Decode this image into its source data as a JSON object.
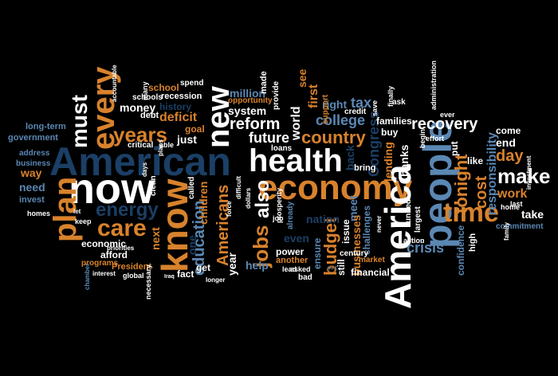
{
  "colors": {
    "white": "#ffffff",
    "orange": "#d8822c",
    "navy": "#1b3f66",
    "blue": "#5b87b3",
    "lightblue": "#9bbad8",
    "background": "#000000"
  },
  "words": {
    "american": "American",
    "now": "now",
    "health": "health",
    "economy": "economy",
    "people": "people",
    "america": "America",
    "know": "know",
    "new": "new",
    "every": "every",
    "plan": "plan",
    "time": "time",
    "make": "make",
    "care": "care",
    "must": "must",
    "years": "years",
    "energy": "energy",
    "jobs": "jobs",
    "also": "also",
    "reform": "reform",
    "future": "future",
    "country": "country",
    "recovery": "recovery",
    "tonight": "tonight",
    "cost": "cost",
    "crisis": "crisis",
    "budget": "budget",
    "americans": "Americans",
    "education": "education",
    "deficit": "deficit",
    "college": "college",
    "congress": "Congress",
    "responsibility": "responsibility",
    "day": "day",
    "work": "work",
    "end": "end",
    "come": "come",
    "take": "take",
    "like": "like",
    "world": "world",
    "first": "first",
    "tax": "tax",
    "right": "right",
    "system": "system",
    "million": "million",
    "money": "money",
    "school": "school",
    "recession": "recession",
    "history": "history",
    "goal": "goal",
    "just": "just",
    "long_term": "long-term",
    "government": "government",
    "address": "address",
    "business": "business",
    "way": "way",
    "need": "need",
    "invest": "invest",
    "homes": "homes",
    "economic": "economic",
    "afford": "afford",
    "next": "next",
    "one": "one",
    "children": "children",
    "get": "get",
    "year": "year",
    "fact": "fact",
    "programs": "programs",
    "president": "President",
    "help": "help",
    "power": "power",
    "another": "another",
    "even": "even",
    "nation": "nation",
    "meet": "meet",
    "businesses": "businesses",
    "challenges": "challenges",
    "financial": "financial",
    "market": "market",
    "lending": "lending",
    "banks": "banks",
    "families": "families",
    "back": "back",
    "buy": "buy",
    "confidence": "confidence",
    "high": "high",
    "commitment": "commitment",
    "home": "home",
    "last": "last",
    "ensure": "ensure",
    "still": "still",
    "issue": "issue",
    "century": "century",
    "see": "see",
    "made": "made",
    "provide": "provide",
    "opportunity": "opportunity",
    "spend": "spend",
    "debt": "debt",
    "schools": "schools",
    "many": "many",
    "critical": "critical",
    "able": "able",
    "called": "called",
    "clean": "clean",
    "loans": "loans",
    "bring": "bring",
    "largest": "largest",
    "united": "united",
    "action": "action",
    "already": "already",
    "lead": "lead",
    "bad": "bad",
    "asked": "asked",
    "cut": "cut",
    "support": "support",
    "credit": "credit",
    "ask": "ask",
    "finally": "finally",
    "administration": "administration",
    "ever": "ever",
    "begin": "begin",
    "effort": "effort",
    "put": "put",
    "keep": "keep",
    "necessary": "necessary",
    "global": "global",
    "longer": "longer",
    "prosperity": "prosperity",
    "job": "job",
    "dollars": "dollars",
    "force": "force",
    "difficult": "difficult",
    "never": "never",
    "investment": "investment",
    "family": "family",
    "save": "save",
    "let": "let",
    "chamber": "chamber",
    "accountable": "accountable",
    "days": "days",
    "iraq": "Iraq",
    "interest": "interest",
    "plans": "plans",
    "priorities": "priorities"
  }
}
